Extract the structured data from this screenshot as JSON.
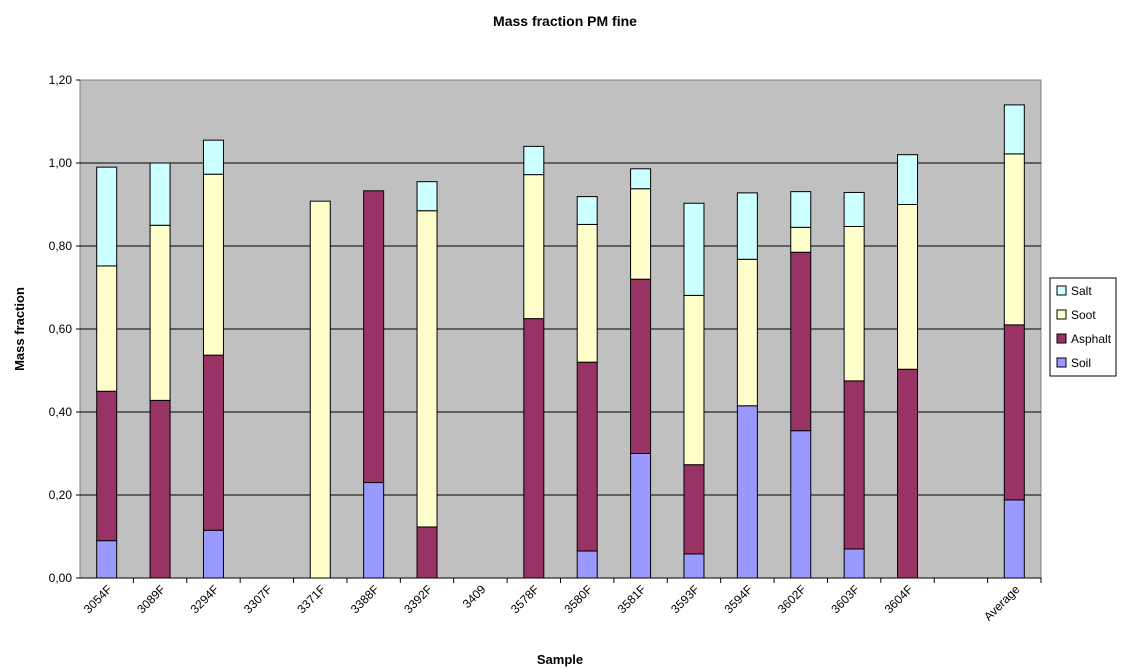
{
  "chart_data": {
    "type": "bar",
    "stacked": true,
    "title": "Mass fraction PM fine",
    "xlabel": "Sample",
    "ylabel": "Mass fraction",
    "ylim": [
      0,
      1.2
    ],
    "yticks": [
      "0,00",
      "0,20",
      "0,40",
      "0,60",
      "0,80",
      "1,00",
      "1,20"
    ],
    "grid": true,
    "legend_position": "right",
    "categories": [
      "3054F",
      "3089F",
      "3294F",
      "3307F",
      "3371F",
      "3388F",
      "3392F",
      "3409",
      "3578F",
      "3580F",
      "3581F",
      "3593F",
      "3594F",
      "3602F",
      "3603F",
      "3604F",
      "",
      "Average"
    ],
    "series": [
      {
        "name": "Soil",
        "color": "#9999ff",
        "values": [
          0.09,
          0,
          0.115,
          0,
          0,
          0.23,
          0,
          0,
          0,
          0.065,
          0.3,
          0.058,
          0.415,
          0.355,
          0.07,
          0,
          0,
          0.188
        ]
      },
      {
        "name": "Asphalt",
        "color": "#993366",
        "values": [
          0.36,
          0.428,
          0.422,
          0,
          0,
          0.703,
          0.123,
          0,
          0.625,
          0.455,
          0.42,
          0.215,
          0,
          0.43,
          0.405,
          0.503,
          0,
          0.422
        ]
      },
      {
        "name": "Soot",
        "color": "#ffffcc",
        "values": [
          0.302,
          0.422,
          0.436,
          0,
          0.908,
          0,
          0.762,
          0,
          0.347,
          0.332,
          0.218,
          0.408,
          0.353,
          0.06,
          0.372,
          0.397,
          0,
          0.412
        ]
      },
      {
        "name": "Salt",
        "color": "#ccffff",
        "values": [
          0.238,
          0.15,
          0.082,
          0,
          0,
          0,
          0.07,
          0,
          0.068,
          0.067,
          0.048,
          0.222,
          0.16,
          0.086,
          0.082,
          0.12,
          0,
          0.118
        ]
      }
    ],
    "plot_background": "#c0c0c0"
  }
}
